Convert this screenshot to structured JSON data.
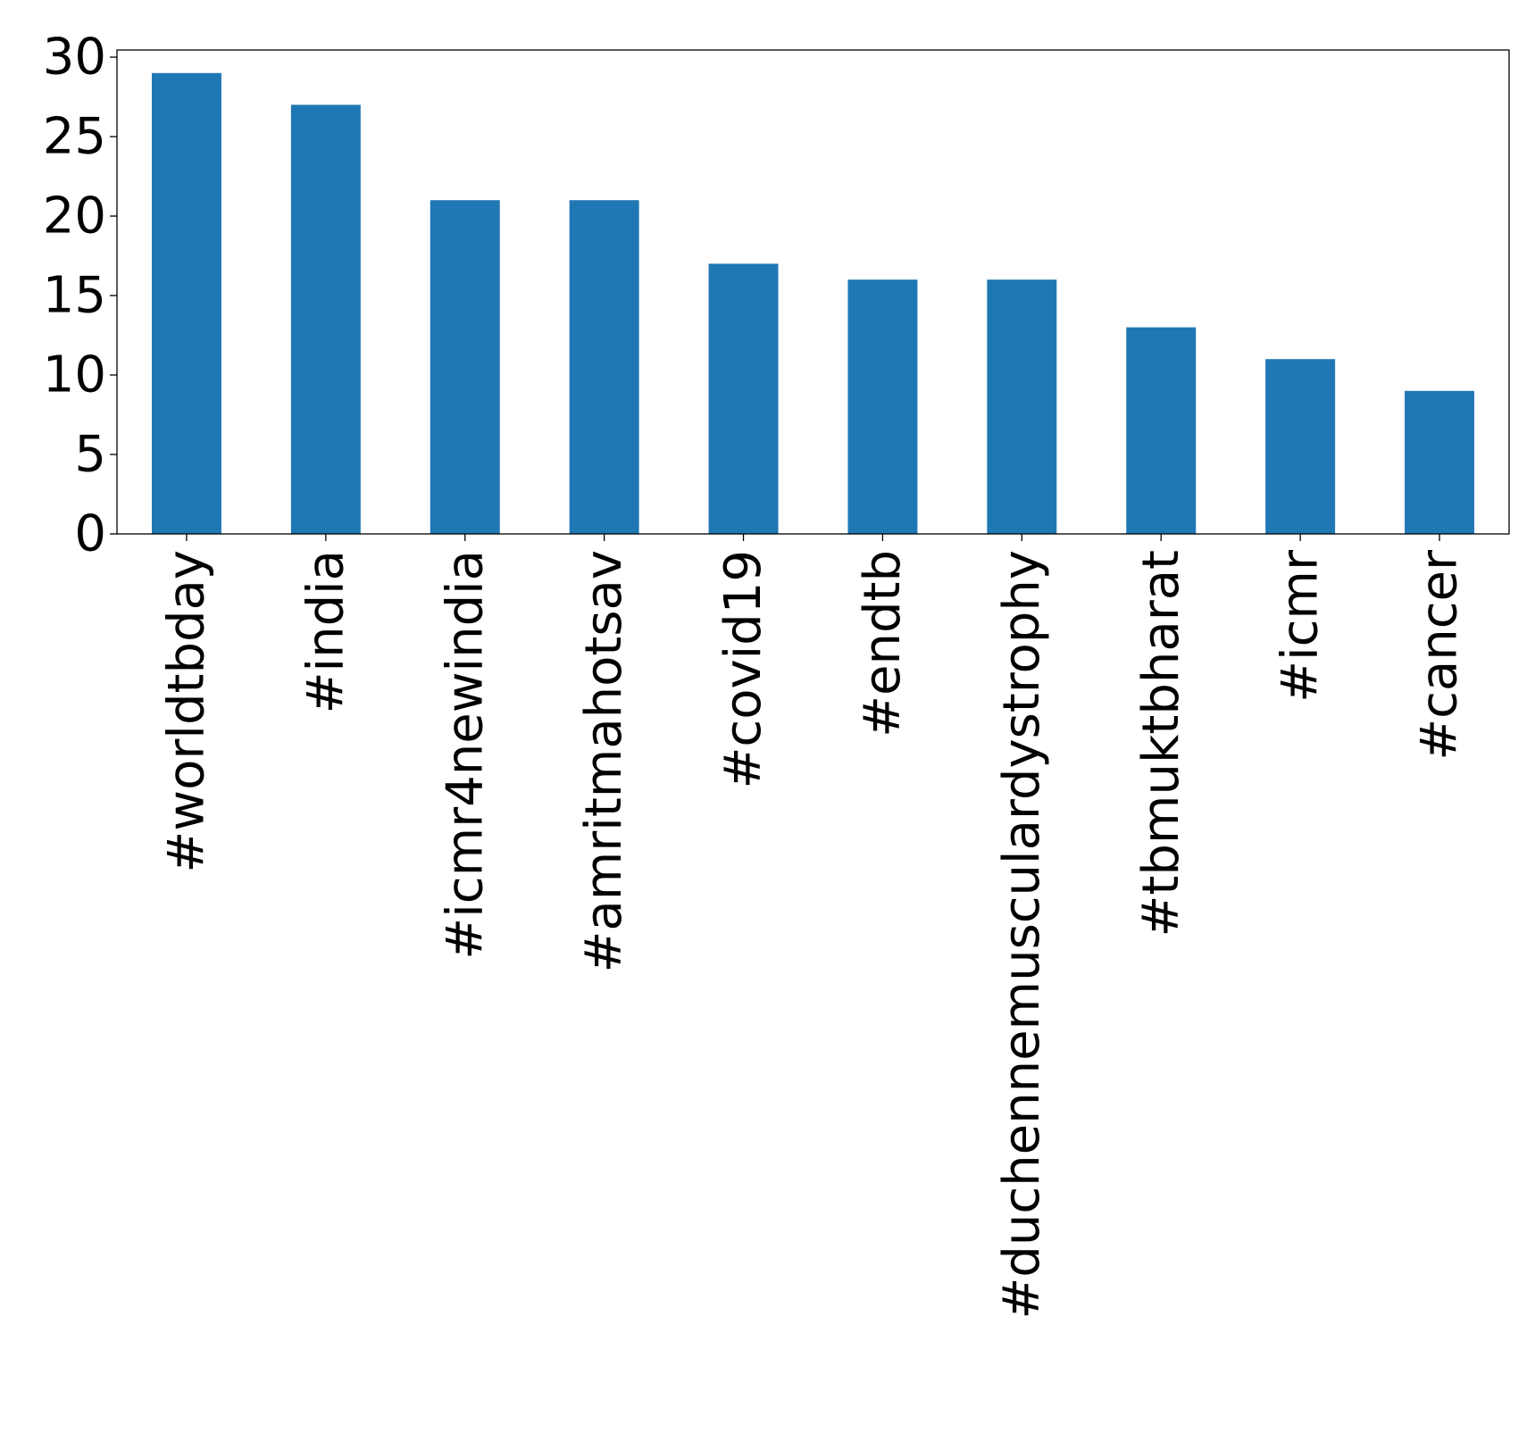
{
  "chart_data": {
    "type": "bar",
    "categories": [
      "#worldtbday",
      "#india",
      "#icmr4newindia",
      "#amritmahotsav",
      "#covid19",
      "#endtb",
      "#duchennemusculardystrophy",
      "#tbmuktbharat",
      "#icmr",
      "#cancer"
    ],
    "values": [
      29,
      27,
      21,
      21,
      17,
      16,
      16,
      13,
      11,
      9
    ],
    "title": "",
    "xlabel": "",
    "ylabel": "",
    "ylim": [
      0,
      30.45
    ],
    "yticks": [
      0,
      5,
      10,
      15,
      20,
      25,
      30
    ],
    "grid": false,
    "bar_color": "#1f77b4"
  }
}
